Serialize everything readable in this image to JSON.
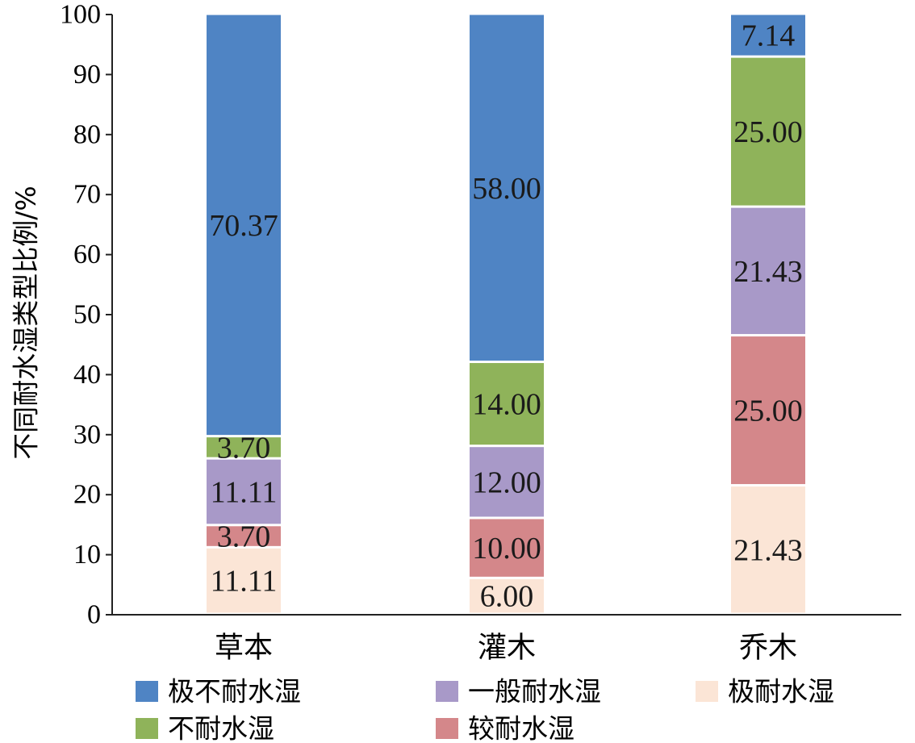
{
  "chart_data": {
    "type": "bar",
    "stacked": true,
    "title": "",
    "xlabel": "",
    "ylabel": "不同耐水湿类型比例/%",
    "ylim": [
      0,
      100
    ],
    "yticks": [
      0,
      10,
      20,
      30,
      40,
      50,
      60,
      70,
      80,
      90,
      100
    ],
    "grid": false,
    "legend_position": "bottom",
    "categories": [
      "草本",
      "灌木",
      "乔木"
    ],
    "series": [
      {
        "name": "极耐水湿",
        "color": "#fbe5d6",
        "values": [
          11.11,
          6.0,
          21.43
        ],
        "labels": [
          "11.11",
          "6.00",
          "21.43"
        ]
      },
      {
        "name": "较耐水湿",
        "color": "#d4878a",
        "values": [
          3.7,
          10.0,
          25.0
        ],
        "labels": [
          "3.70",
          "10.00",
          "25.00"
        ]
      },
      {
        "name": "一般耐水湿",
        "color": "#a899c8",
        "values": [
          11.11,
          12.0,
          21.43
        ],
        "labels": [
          "11.11",
          "12.00",
          "21.43"
        ]
      },
      {
        "name": "不耐水湿",
        "color": "#8fb35a",
        "values": [
          3.7,
          14.0,
          25.0
        ],
        "labels": [
          "3.70",
          "14.00",
          "25.00"
        ]
      },
      {
        "name": "极不耐水湿",
        "color": "#4f84c4",
        "values": [
          70.37,
          58.0,
          7.14
        ],
        "labels": [
          "70.37",
          "58.00",
          "7.14"
        ]
      }
    ],
    "legend_order": [
      "极不耐水湿",
      "一般耐水湿",
      "极耐水湿",
      "不耐水湿",
      "较耐水湿"
    ]
  }
}
